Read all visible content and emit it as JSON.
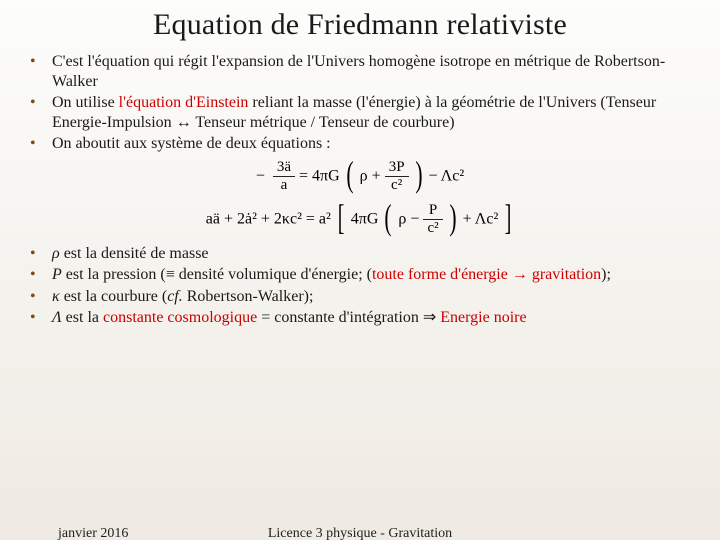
{
  "title": "Equation de Friedmann relativiste",
  "bullets_top": [
    {
      "html": "C'est l'équation qui régit l'expansion de l'Univers homogène isotrope en métrique de Robertson-Walker"
    },
    {
      "html": "On utilise <span class='red'>l'équation d'Einstein</span> reliant la masse (l'énergie) à la géométrie de l'Univers (Tenseur Energie-Impulsion <span class='sym'>↔</span> Tenseur métrique / Tenseur de courbure)"
    },
    {
      "html": "On aboutit aux système de deux équations :"
    }
  ],
  "eq1": {
    "lhs_num": "3ä",
    "lhs_den": "a",
    "mid_text": " = 4πG ",
    "inner_pre": "ρ + ",
    "inner_frac_num": "3P",
    "inner_frac_den": "c²",
    "tail": " − Λc²"
  },
  "eq2": {
    "pre": "aä + 2ȧ² + 2κc² = a² ",
    "inner_pre": "4πG ",
    "paren_pre": "ρ − ",
    "inner_frac_num": "P",
    "inner_frac_den": "c²",
    "tail": " + Λc²"
  },
  "bullets_bottom": [
    {
      "html": "<span class='ital'>ρ</span> est la densité de masse"
    },
    {
      "html": "<span class='ital'>P</span> est la pression (≡ densité volumique d'énergie; (<span class='red'>toute forme d'énergie → gravitation</span>);"
    },
    {
      "html": "<span class='ital'>κ</span> est la courbure (<span class='ital'>cf.</span> Robertson-Walker);"
    },
    {
      "html": "<span class='ital'>Λ</span> est la <span class='red'>constante cosmologique</span> = constante d'intégration ⇒ <span class='red'>Energie noire</span>"
    }
  ],
  "footer": {
    "left": "janvier 2016",
    "center": "Licence 3 physique - Gravitation"
  },
  "colors": {
    "bullet": "#7a4b1a",
    "red": "#cc0000",
    "text": "#1a1a1a",
    "bg_top": "#fdfdfc",
    "bg_bottom": "#efeae3"
  }
}
